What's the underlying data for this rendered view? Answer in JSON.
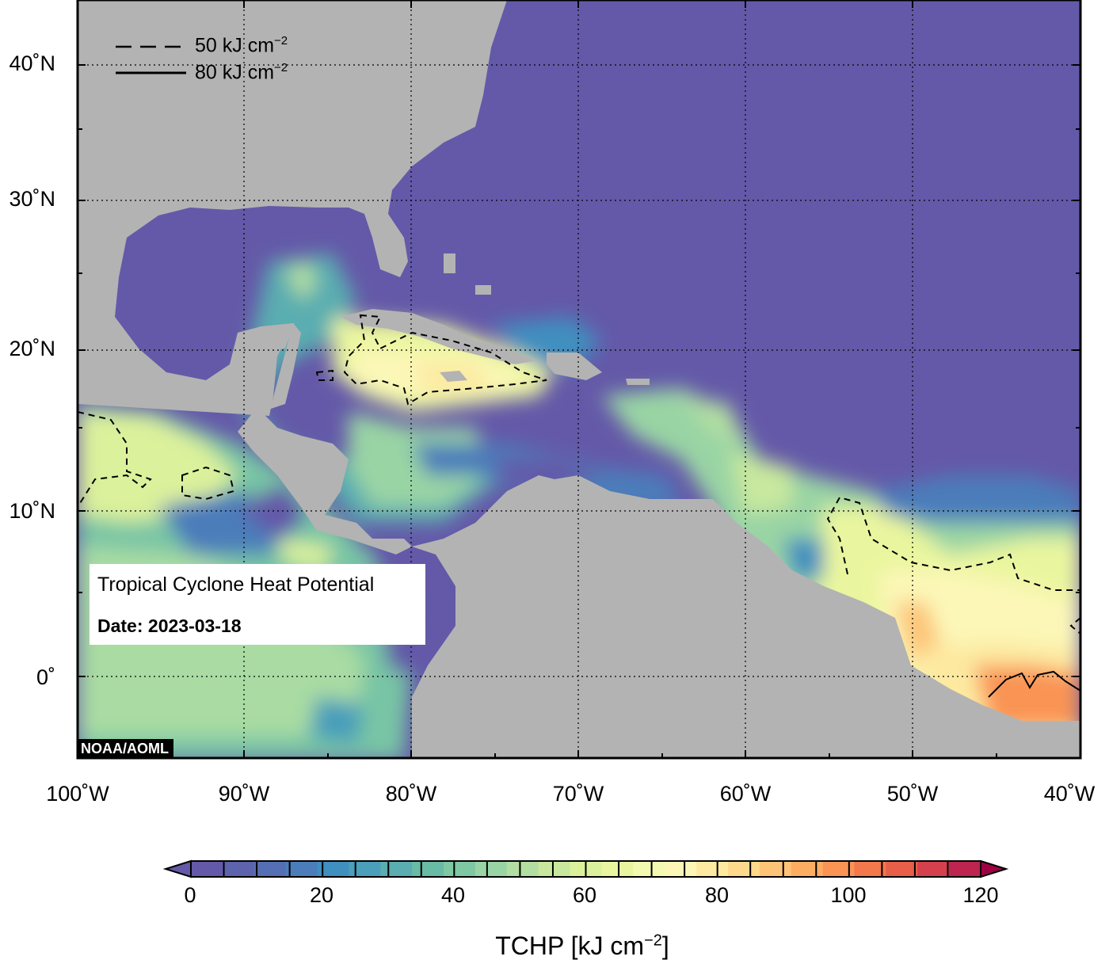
{
  "map": {
    "title": "Tropical Cyclone Heat Potential",
    "date_label": "Date: 2023-03-18",
    "credit": "NOAA/AOML",
    "lat_ticks": [
      "40˚N",
      "30˚N",
      "20˚N",
      "10˚N",
      "0˚"
    ],
    "lon_ticks": [
      "100˚W",
      "90˚W",
      "80˚W",
      "70˚W",
      "60˚W",
      "50˚W",
      "40˚W"
    ],
    "extent": {
      "lon_min": -100,
      "lon_max": -40,
      "lat_min": -5,
      "lat_max": 45
    },
    "gridlines": "dotted",
    "legend": [
      {
        "style": "dashed",
        "value": "50",
        "unit": "kJ cm",
        "exp": "−2"
      },
      {
        "style": "solid",
        "value": "80",
        "unit": "kJ cm",
        "exp": "−2"
      }
    ],
    "colors": {
      "land": "#b3b3b3",
      "low": "#6459a8",
      "mid": "#e9f59d",
      "high": "#f46d43",
      "max": "#9e0142"
    }
  },
  "colorbar": {
    "ticks": [
      "0",
      "20",
      "40",
      "60",
      "80",
      "100",
      "120"
    ],
    "min": 0,
    "max": 120,
    "step": 5,
    "label": "TCHP [kJ cm",
    "label_exp": "−2",
    "label_end": "]",
    "colors": [
      "#6459a8",
      "#5e63ad",
      "#556fb5",
      "#4b7dba",
      "#3f8fbf",
      "#4a9fba",
      "#5aadb0",
      "#68bba4",
      "#7fc8a4",
      "#99d4a4",
      "#b2deA2",
      "#c8e89e",
      "#dcf19b",
      "#eaf69f",
      "#f4fab0",
      "#fcf7b7",
      "#fde9a0",
      "#fed98b",
      "#fdc478",
      "#fdad62",
      "#f99455",
      "#f3784b",
      "#e75e49",
      "#d5404e",
      "#bd2450"
    ]
  }
}
